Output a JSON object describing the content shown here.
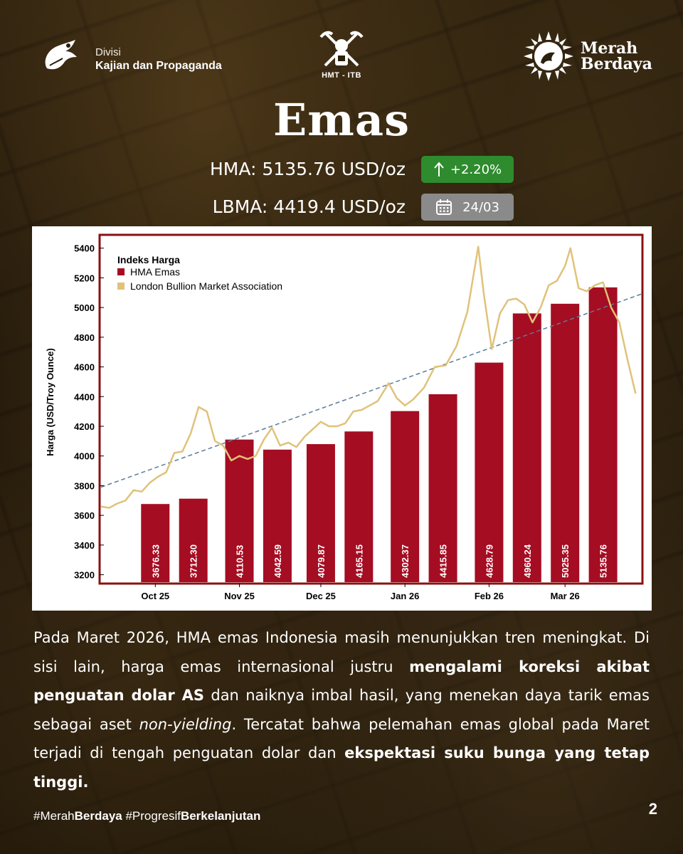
{
  "header": {
    "division_label": "Divisi",
    "division_name": "Kajian dan Propaganda",
    "center_logo_text": "HMT - ITB",
    "brand_line1": "Merah",
    "brand_line2": "Berdaya"
  },
  "title": "Emas",
  "stats": {
    "hma_text": "HMA: 5135.76 USD/oz",
    "hma_change": "+2.20%",
    "lbma_text": "LBMA: 4419.4 USD/oz",
    "date": "24/03"
  },
  "colors": {
    "bar": "#a50d22",
    "lbma_line": "#e0c27a",
    "trend": "#5a7c99",
    "border": "#8b1010",
    "up_badge": "#2e8b2e",
    "date_badge": "#8a8a8a"
  },
  "icons": [
    "arrow-up-icon",
    "calendar-icon"
  ],
  "chart_data": {
    "type": "bar",
    "legend_title": "Indeks Harga",
    "legend_placement": "top-left",
    "ylabel": "Harga (USD/Troy Ounce)",
    "ylim": [
      3150,
      5480
    ],
    "yticks": [
      3200,
      3400,
      3600,
      3800,
      4000,
      4200,
      4400,
      4600,
      4800,
      5000,
      5200,
      5400
    ],
    "x_ticks": [
      "Oct 25",
      "Nov 25",
      "Dec 25",
      "Jan 26",
      "Feb 26",
      "Mar 26"
    ],
    "x_tick_dates": [
      "2025-10-01",
      "2025-11-01",
      "2025-12-01",
      "2026-01-01",
      "2026-02-01",
      "2026-03-01"
    ],
    "xlim": [
      "2025-09-11",
      "2026-03-29"
    ],
    "series": [
      {
        "name": "HMA Emas",
        "type": "bar",
        "dates": [
          "2025-10-01",
          "2025-10-15",
          "2025-11-01",
          "2025-11-15",
          "2025-12-01",
          "2025-12-15",
          "2026-01-01",
          "2026-01-15",
          "2026-02-01",
          "2026-02-15",
          "2026-03-01",
          "2026-03-15"
        ],
        "values": [
          3676.33,
          3712.3,
          4110.53,
          4042.59,
          4079.87,
          4165.15,
          4302.37,
          4415.85,
          4628.79,
          4960.24,
          5025.35,
          5135.76
        ],
        "labels": [
          "3676.33",
          "3712.30",
          "4110.53",
          "4042.59",
          "4079.87",
          "4165.15",
          "4302.37",
          "4415.85",
          "4628.79",
          "4960.24",
          "5025.35",
          "5135.76"
        ]
      },
      {
        "name": "London Bullion Market Association",
        "type": "line",
        "points": [
          [
            "2025-09-11",
            3660
          ],
          [
            "2025-09-14",
            3650
          ],
          [
            "2025-09-17",
            3680
          ],
          [
            "2025-09-20",
            3700
          ],
          [
            "2025-09-23",
            3770
          ],
          [
            "2025-09-26",
            3760
          ],
          [
            "2025-09-29",
            3820
          ],
          [
            "2025-10-02",
            3860
          ],
          [
            "2025-10-05",
            3890
          ],
          [
            "2025-10-08",
            4020
          ],
          [
            "2025-10-11",
            4030
          ],
          [
            "2025-10-14",
            4150
          ],
          [
            "2025-10-17",
            4330
          ],
          [
            "2025-10-20",
            4300
          ],
          [
            "2025-10-23",
            4100
          ],
          [
            "2025-10-26",
            4070
          ],
          [
            "2025-10-29",
            3970
          ],
          [
            "2025-11-01",
            4000
          ],
          [
            "2025-11-04",
            3980
          ],
          [
            "2025-11-07",
            4000
          ],
          [
            "2025-11-10",
            4110
          ],
          [
            "2025-11-13",
            4190
          ],
          [
            "2025-11-16",
            4070
          ],
          [
            "2025-11-19",
            4090
          ],
          [
            "2025-11-22",
            4060
          ],
          [
            "2025-11-25",
            4130
          ],
          [
            "2025-11-28",
            4180
          ],
          [
            "2025-12-01",
            4230
          ],
          [
            "2025-12-04",
            4200
          ],
          [
            "2025-12-07",
            4200
          ],
          [
            "2025-12-10",
            4220
          ],
          [
            "2025-12-13",
            4300
          ],
          [
            "2025-12-16",
            4310
          ],
          [
            "2025-12-19",
            4340
          ],
          [
            "2025-12-22",
            4370
          ],
          [
            "2025-12-26",
            4490
          ],
          [
            "2025-12-29",
            4390
          ],
          [
            "2026-01-01",
            4340
          ],
          [
            "2026-01-04",
            4380
          ],
          [
            "2026-01-08",
            4460
          ],
          [
            "2026-01-12",
            4600
          ],
          [
            "2026-01-16",
            4610
          ],
          [
            "2026-01-20",
            4740
          ],
          [
            "2026-01-24",
            4970
          ],
          [
            "2026-01-28",
            5410
          ],
          [
            "2026-01-30",
            5100
          ],
          [
            "2026-02-02",
            4720
          ],
          [
            "2026-02-05",
            4960
          ],
          [
            "2026-02-08",
            5050
          ],
          [
            "2026-02-11",
            5060
          ],
          [
            "2026-02-14",
            5020
          ],
          [
            "2026-02-17",
            4900
          ],
          [
            "2026-02-20",
            5000
          ],
          [
            "2026-02-23",
            5150
          ],
          [
            "2026-02-26",
            5180
          ],
          [
            "2026-03-01",
            5280
          ],
          [
            "2026-03-03",
            5400
          ],
          [
            "2026-03-06",
            5130
          ],
          [
            "2026-03-09",
            5110
          ],
          [
            "2026-03-12",
            5150
          ],
          [
            "2026-03-15",
            5170
          ],
          [
            "2026-03-18",
            5000
          ],
          [
            "2026-03-21",
            4900
          ],
          [
            "2026-03-24",
            4650
          ],
          [
            "2026-03-27",
            4420
          ]
        ]
      },
      {
        "name": "",
        "type": "trend",
        "points": [
          [
            "2025-09-11",
            3790
          ],
          [
            "2026-03-29",
            5090
          ]
        ]
      }
    ]
  },
  "body": {
    "p1": "Pada Maret 2026, HMA emas Indonesia masih menunjukkan tren meningkat. Di sisi lain, harga emas internasional justru ",
    "b1": "mengalami koreksi akibat penguatan dolar AS",
    "p2": " dan naiknya imbal hasil, yang menekan daya tarik emas sebagai aset ",
    "i1": "non-yielding",
    "p3": ". Tercatat bahwa pelemahan emas global pada Maret terjadi di tengah penguatan dolar dan ",
    "b2": "ekspektasi suku bunga yang tetap tinggi."
  },
  "footer": {
    "tag1_a": "#Merah",
    "tag1_b": "Berdaya",
    "tag2_a": " #Progresif",
    "tag2_b": "Berkelanjutan",
    "page": "2"
  }
}
